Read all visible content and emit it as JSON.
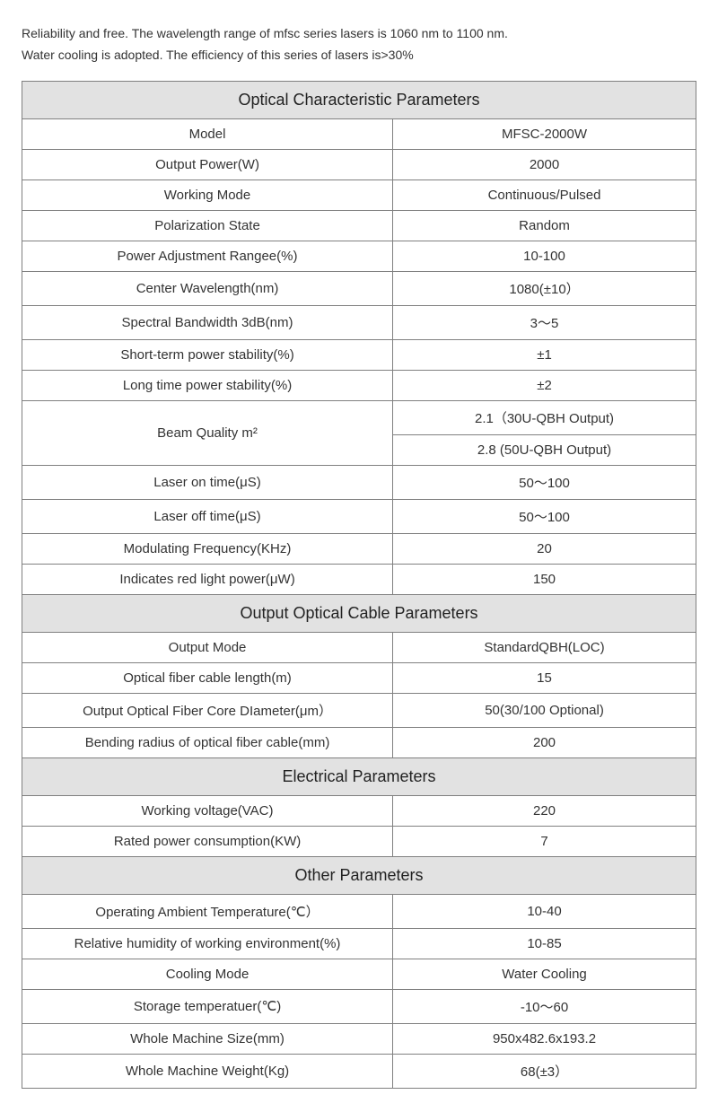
{
  "intro": {
    "line1": "Reliability and free. The wavelength range of mfsc series lasers is 1060 nm to 1100 nm.",
    "line2": "Water cooling is adopted. The efficiency of this series of lasers is>30%"
  },
  "sections": {
    "optical": {
      "header": "Optical Characteristic Parameters",
      "rows": {
        "model": {
          "label": "Model",
          "value": "MFSC-2000W"
        },
        "output_power": {
          "label": "Output Power(W)",
          "value": "2000"
        },
        "working_mode": {
          "label": "Working Mode",
          "value": "Continuous/Pulsed"
        },
        "polarization": {
          "label": "Polarization State",
          "value": "Random"
        },
        "power_adj": {
          "label": "Power Adjustment Rangee(%)",
          "value": "10-100"
        },
        "center_wl": {
          "label": "Center Wavelength(nm)",
          "value": "1080(±10）"
        },
        "spectral_bw": {
          "label": "Spectral Bandwidth 3dB(nm)",
          "value": "3～5"
        },
        "short_stab": {
          "label": "Short-term power stability(%)",
          "value": "±1"
        },
        "long_stab": {
          "label": "Long time power stability(%)",
          "value": "±2"
        },
        "beam_q": {
          "label": "Beam Quality m²",
          "value1": "2.1（30U-QBH Output)",
          "value2": "2.8 (50U-QBH Output)"
        },
        "laser_on": {
          "label": "Laser on time(μS)",
          "value": "50～100"
        },
        "laser_off": {
          "label": "Laser off time(μS)",
          "value": "50～100"
        },
        "mod_freq": {
          "label": "Modulating Frequency(KHz)",
          "value": "20"
        },
        "red_light": {
          "label": "Indicates red light power(μW)",
          "value": "150"
        }
      }
    },
    "cable": {
      "header": "Output Optical Cable Parameters",
      "rows": {
        "output_mode": {
          "label": "Output Mode",
          "value": "StandardQBH(LOC)"
        },
        "cable_len": {
          "label": "Optical fiber cable length(m)",
          "value": "15"
        },
        "core_dia": {
          "label": "Output Optical Fiber Core DIameter(μm）",
          "value": "50(30/100 Optional)"
        },
        "bend_rad": {
          "label": "Bending radius of optical fiber cable(mm)",
          "value": "200"
        }
      }
    },
    "electrical": {
      "header": "Electrical Parameters",
      "rows": {
        "voltage": {
          "label": "Working voltage(VAC)",
          "value": "220"
        },
        "rated_pw": {
          "label": "Rated power consumption(KW)",
          "value": "7"
        }
      }
    },
    "other": {
      "header": "Other Parameters",
      "rows": {
        "op_temp": {
          "label": "Operating Ambient Temperature(℃）",
          "value": "10-40"
        },
        "humidity": {
          "label": "Relative humidity of working environment(%)",
          "value": "10-85"
        },
        "cooling": {
          "label": "Cooling Mode",
          "value": "Water Cooling"
        },
        "storage_t": {
          "label": "Storage temperatuer(℃)",
          "value": "-10～60"
        },
        "size": {
          "label": "Whole Machine Size(mm)",
          "value": "950x482.6x193.2"
        },
        "weight": {
          "label": "Whole Machine Weight(Kg)",
          "value": "68(±3）"
        }
      }
    }
  }
}
